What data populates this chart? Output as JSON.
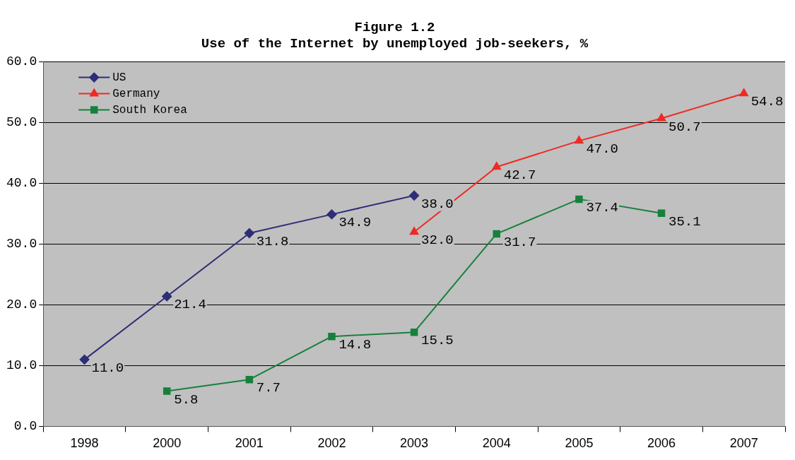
{
  "chart_data": {
    "type": "line",
    "title": "Figure 1.2\nUse of the Internet by unemployed job-seekers, %",
    "categories": [
      "1998",
      "2000",
      "2001",
      "2002",
      "2003",
      "2004",
      "2005",
      "2006",
      "2007"
    ],
    "series": [
      {
        "name": "US",
        "color": "#2e2d78",
        "marker": "diamond",
        "values": [
          11.0,
          21.4,
          31.8,
          34.9,
          38.0,
          null,
          null,
          null,
          null
        ],
        "value_labels": [
          "11.0",
          "21.4",
          "31.8",
          "34.9",
          "38.0",
          null,
          null,
          null,
          null
        ]
      },
      {
        "name": "Germany",
        "color": "#ee2a24",
        "marker": "triangle",
        "values": [
          null,
          null,
          null,
          null,
          32.0,
          42.7,
          47.0,
          50.7,
          54.8
        ],
        "value_labels": [
          null,
          null,
          null,
          null,
          "32.0",
          "42.7",
          "47.0",
          "50.7",
          "54.8"
        ]
      },
      {
        "name": "South Korea",
        "color": "#16803c",
        "marker": "square",
        "values": [
          null,
          5.8,
          7.7,
          14.8,
          15.5,
          31.7,
          37.4,
          35.1,
          null
        ],
        "value_labels": [
          null,
          "5.8",
          "7.7",
          "14.8",
          "15.5",
          "31.7",
          "37.4",
          "35.1",
          null
        ]
      }
    ],
    "ylim": [
      0,
      60
    ],
    "yticks": [
      {
        "value": 0,
        "label": "0.0"
      },
      {
        "value": 10,
        "label": "10.0"
      },
      {
        "value": 20,
        "label": "20.0"
      },
      {
        "value": 30,
        "label": "30.0"
      },
      {
        "value": 40,
        "label": "40.0"
      },
      {
        "value": 50,
        "label": "50.0"
      },
      {
        "value": 60,
        "label": "60.0"
      }
    ],
    "grid": "y",
    "legend": "top left",
    "line_style": "solid"
  }
}
